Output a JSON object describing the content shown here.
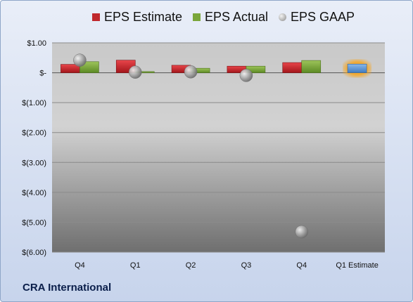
{
  "chart_data": {
    "type": "bar",
    "categories": [
      "Q4",
      "Q1",
      "Q2",
      "Q3",
      "Q4",
      "Q1 Estimate"
    ],
    "series": [
      {
        "name": "EPS Estimate",
        "color": "#c0282d",
        "values": [
          0.28,
          0.42,
          0.25,
          0.22,
          0.34,
          null
        ]
      },
      {
        "name": "EPS Actual",
        "color": "#7aa63a",
        "values": [
          0.37,
          0.04,
          0.15,
          0.22,
          0.41,
          null
        ]
      },
      {
        "name": "EPS GAAP",
        "color": "#a9a9a9",
        "type": "scatter",
        "values": [
          0.42,
          0.02,
          0.03,
          -0.09,
          -5.32,
          null
        ]
      },
      {
        "name": "Q1 Estimate",
        "color": "#5b9bd5",
        "highlight": "#f5a623",
        "values": [
          null,
          null,
          null,
          null,
          null,
          0.29
        ]
      }
    ],
    "yticks": [
      "$1.00",
      "$-",
      "$(1.00)",
      "$(2.00)",
      "$(3.00)",
      "$(4.00)",
      "$(5.00)",
      "$(6.00)"
    ],
    "ylim": [
      -6,
      1
    ],
    "legend_position": "top",
    "grid": true
  },
  "legend": [
    {
      "label": "EPS Estimate",
      "icon": "red-bar-icon"
    },
    {
      "label": "EPS Actual",
      "icon": "green-bar-icon"
    },
    {
      "label": "EPS GAAP",
      "icon": "grey-sphere-icon"
    }
  ],
  "company": "CRA International"
}
